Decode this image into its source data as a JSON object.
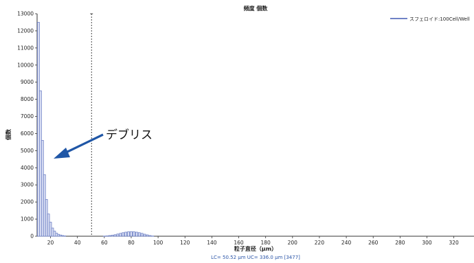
{
  "chart_data": {
    "type": "bar",
    "title": "頻度 個数",
    "xlabel": "粒子直径（μm）",
    "ylabel": "個数",
    "xlim": [
      10,
      335
    ],
    "ylim": [
      0,
      13000
    ],
    "x_ticks": [
      20,
      40,
      60,
      80,
      100,
      120,
      140,
      160,
      180,
      200,
      220,
      240,
      260,
      280,
      300,
      320
    ],
    "y_ticks": [
      0,
      1000,
      2000,
      3000,
      4000,
      5000,
      6000,
      7000,
      8000,
      9000,
      10000,
      11000,
      12000,
      13000
    ],
    "grid": false,
    "legend_position": "top-right",
    "bar_width": 1.5,
    "series": [
      {
        "name": "スフェロイド:100Cell/Well",
        "color": "#6f82c6",
        "x": [
          11,
          12.5,
          14,
          15.5,
          17,
          18.5,
          20,
          21.5,
          23,
          24.5,
          26,
          27.5,
          29,
          30.5,
          60,
          62,
          64,
          66,
          68,
          70,
          72,
          74,
          76,
          78,
          80,
          82,
          84,
          86,
          88,
          90,
          92,
          94,
          96
        ],
        "values": [
          12500,
          8500,
          5600,
          3600,
          2150,
          1300,
          820,
          480,
          300,
          180,
          110,
          70,
          40,
          20,
          10,
          20,
          40,
          60,
          90,
          130,
          170,
          210,
          240,
          260,
          270,
          260,
          240,
          210,
          170,
          120,
          80,
          40,
          15
        ]
      }
    ],
    "threshold_line": {
      "x": 50.5
    },
    "annotations": [
      {
        "text": "デブリス",
        "color": "#1f56a6"
      }
    ],
    "footer": "LC= 50.52 μm  UC= 336.0 μm [3477]"
  }
}
